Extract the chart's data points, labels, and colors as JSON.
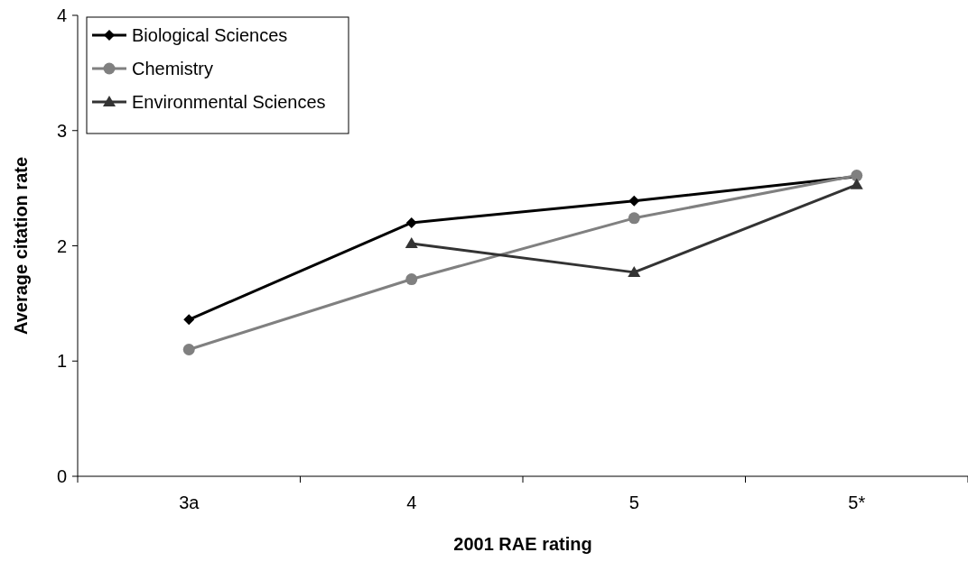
{
  "chart_data": {
    "type": "line",
    "xlabel": "2001 RAE rating",
    "ylabel": "Average citation rate",
    "categories": [
      "3a",
      "4",
      "5",
      "5*"
    ],
    "series": [
      {
        "name": "Biological Sciences",
        "color": "#000000",
        "marker": "diamond",
        "values": [
          1.36,
          2.2,
          2.39,
          2.6
        ]
      },
      {
        "name": "Chemistry",
        "color": "#808080",
        "marker": "circle",
        "values": [
          1.1,
          1.71,
          2.24,
          2.61
        ]
      },
      {
        "name": "Environmental Sciences",
        "color": "#333333",
        "marker": "triangle",
        "values": [
          null,
          2.02,
          1.77,
          2.53
        ]
      }
    ],
    "ylim": [
      0,
      4
    ],
    "yticks": [
      0,
      1,
      2,
      3,
      4
    ],
    "grid": false,
    "legend": "top left"
  }
}
